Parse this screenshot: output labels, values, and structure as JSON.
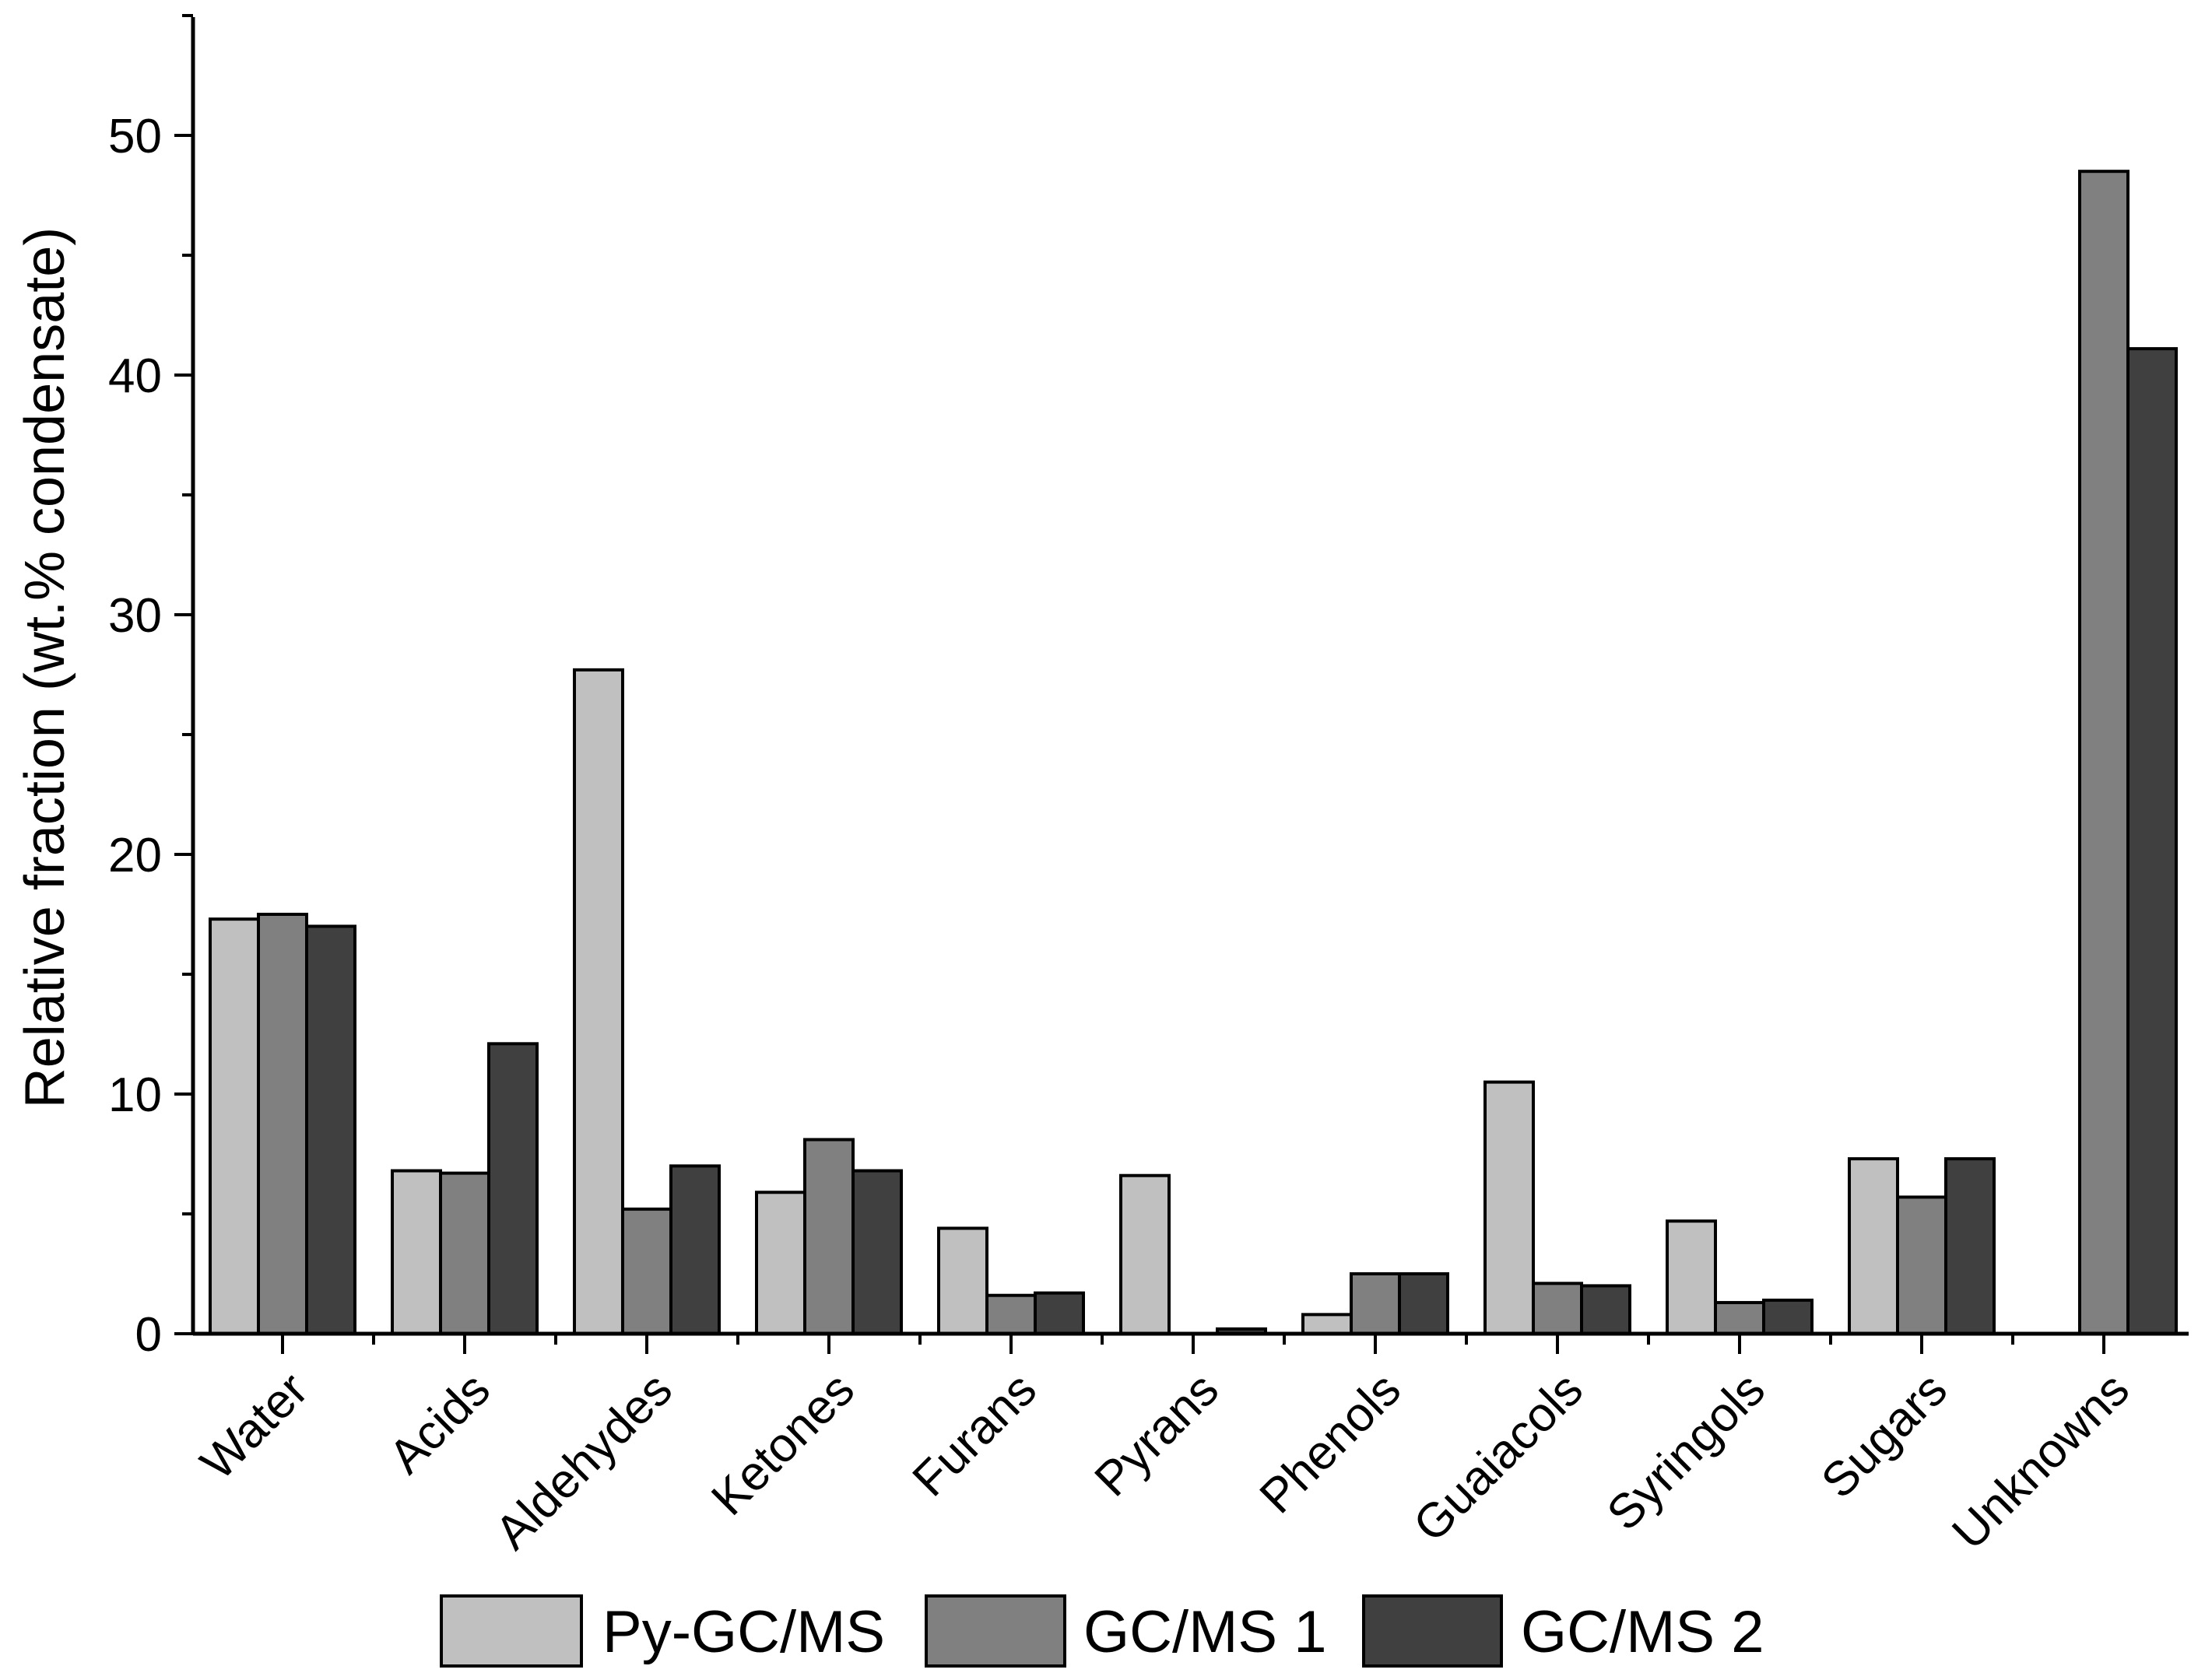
{
  "chart_data": {
    "type": "bar",
    "title": "",
    "xlabel": "",
    "ylabel": "Relative fraction (wt.% condensate)",
    "ylim": [
      0,
      55
    ],
    "yticks": [
      0,
      10,
      20,
      30,
      40,
      50
    ],
    "ytick_labels": [
      "0",
      "10",
      "20",
      "30",
      "40",
      "50"
    ],
    "grid": false,
    "legend_position": "bottom",
    "categories": [
      "Water",
      "Acids",
      "Aldehydes",
      "Ketones",
      "Furans",
      "Pyrans",
      "Phenols",
      "Guaiacols",
      "Syringols",
      "Sugars",
      "Unknowns"
    ],
    "series": [
      {
        "name": "Py-GC/MS",
        "color": "#c0c0c0",
        "values": [
          17.3,
          6.8,
          27.7,
          5.9,
          4.4,
          6.6,
          0.8,
          10.5,
          4.7,
          7.3,
          0
        ]
      },
      {
        "name": "GC/MS 1",
        "color": "#808080",
        "values": [
          17.5,
          6.7,
          5.2,
          8.1,
          1.6,
          0,
          2.5,
          2.1,
          1.3,
          5.7,
          48.5
        ]
      },
      {
        "name": "GC/MS 2",
        "color": "#404040",
        "values": [
          17.0,
          12.1,
          7.0,
          6.8,
          1.7,
          0.2,
          2.5,
          2.0,
          1.4,
          7.3,
          41.1
        ]
      }
    ]
  }
}
